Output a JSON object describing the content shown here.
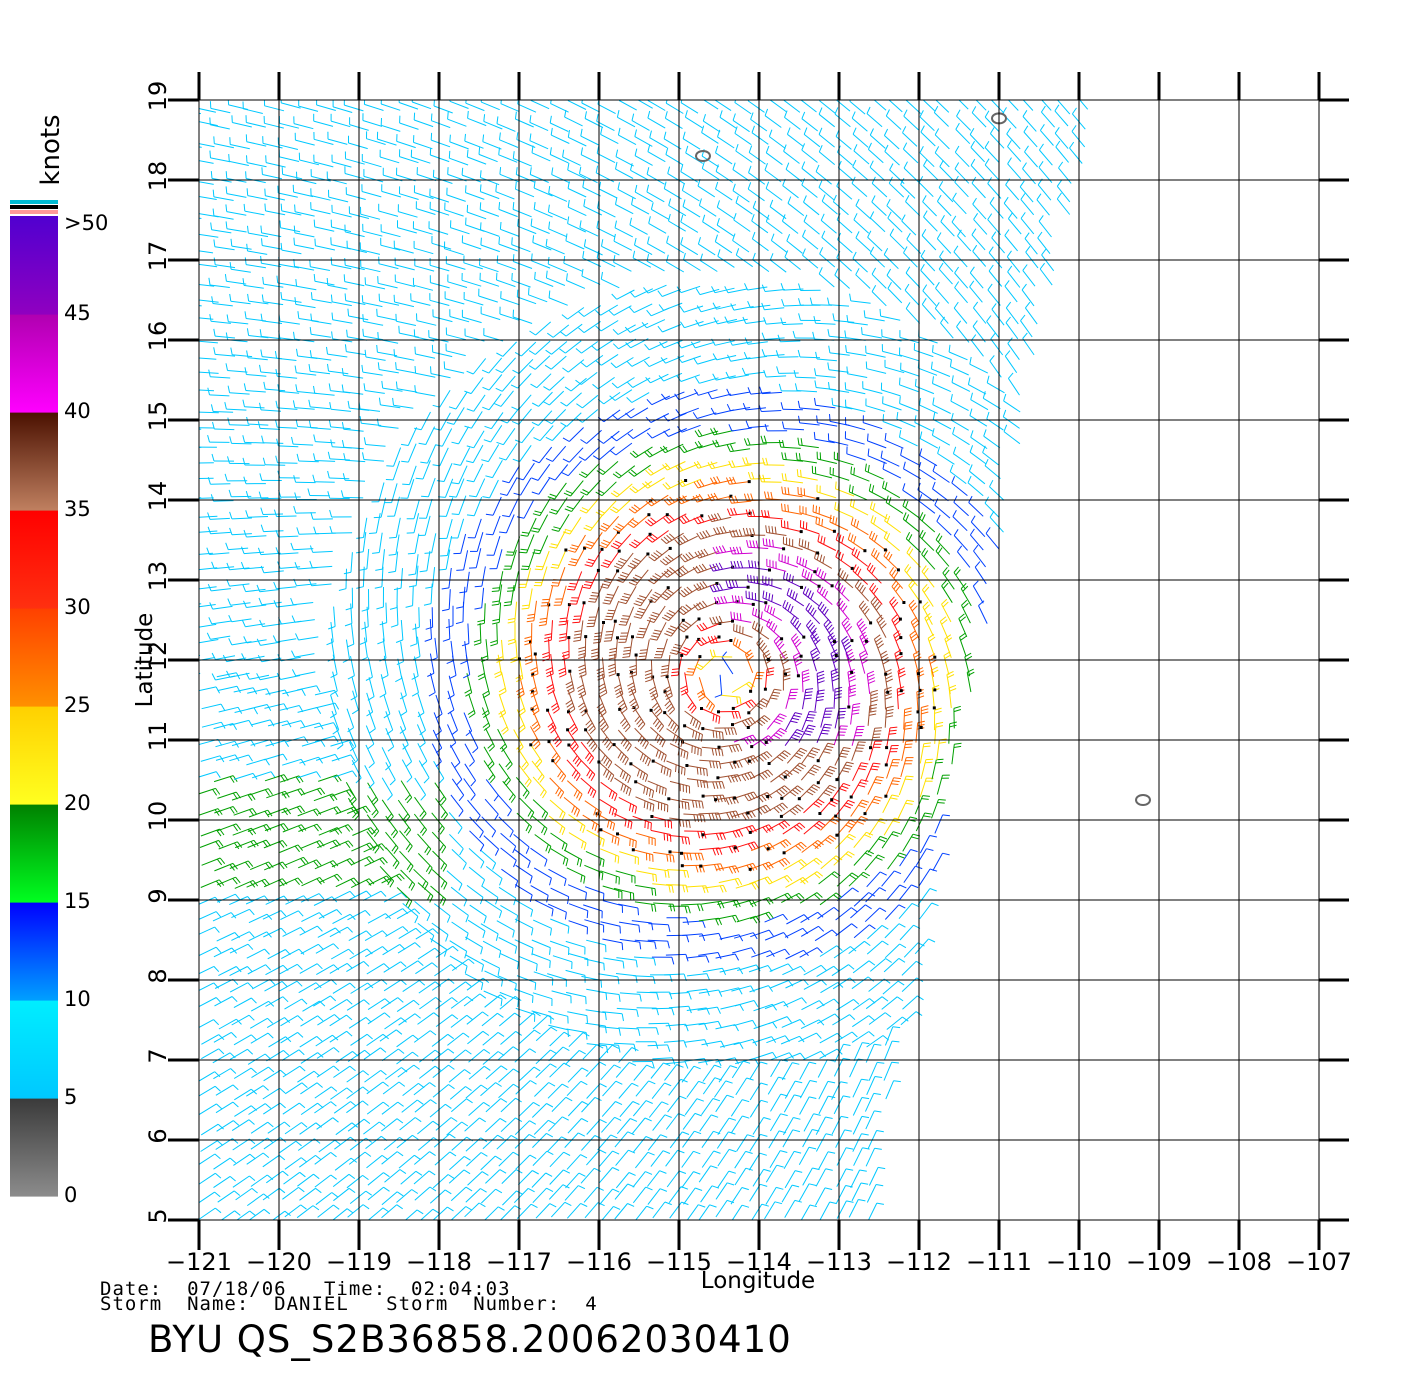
{
  "map": {
    "lon_range": [
      -121,
      -107
    ],
    "lat_range": [
      5,
      19
    ],
    "lon_ticks": [
      -121,
      -120,
      -119,
      -118,
      -117,
      -116,
      -115,
      -114,
      -113,
      -112,
      -111,
      -110,
      -109,
      -108,
      -107
    ],
    "lat_ticks": [
      5,
      6,
      7,
      8,
      9,
      10,
      11,
      12,
      13,
      14,
      15,
      16,
      17,
      18,
      19
    ],
    "lon_tick_labels": [
      "−121",
      "−120",
      "−119",
      "−118",
      "−117",
      "−116",
      "−115",
      "−114",
      "−113",
      "−112",
      "−111",
      "−110",
      "−109",
      "−108",
      "−107"
    ],
    "lat_tick_labels": [
      "5",
      "6",
      "7",
      "8",
      "9",
      "10",
      "11",
      "12",
      "13",
      "14",
      "15",
      "16",
      "17",
      "18",
      "19"
    ],
    "xlabel": "Longitude",
    "ylabel": "Latitude",
    "grid": true,
    "storm_center": {
      "lon": -114.4,
      "lat": 11.8
    },
    "swath_east_edge": [
      [
        -109.8,
        19
      ],
      [
        -110.2,
        17
      ],
      [
        -110.6,
        15.5
      ],
      [
        -111.0,
        13
      ],
      [
        -111.5,
        11
      ],
      [
        -111.9,
        9
      ],
      [
        -112.3,
        7
      ],
      [
        -112.5,
        6
      ],
      [
        -112.6,
        5
      ]
    ],
    "land_contours": [
      {
        "lon": -114.7,
        "lat": 18.3
      },
      {
        "lon": -111.0,
        "lat": 18.77
      },
      {
        "lon": -109.2,
        "lat": 10.25
      }
    ]
  },
  "colorbar": {
    "unit_label": "knots",
    "labels": [
      ">50",
      "45",
      "40",
      "35",
      "30",
      "25",
      "20",
      "15",
      "10",
      "5",
      "0"
    ],
    "segments": [
      {
        "from": 0,
        "to": 5,
        "top": "#3a3a3a",
        "bottom": "#8c8c8c"
      },
      {
        "from": 5,
        "to": 10,
        "top": "#00eeff",
        "bottom": "#00c8ff"
      },
      {
        "from": 10,
        "to": 15,
        "top": "#0000ff",
        "bottom": "#00a0ff"
      },
      {
        "from": 15,
        "to": 20,
        "top": "#008000",
        "bottom": "#00ff20"
      },
      {
        "from": 20,
        "to": 25,
        "top": "#ffd000",
        "bottom": "#ffff20"
      },
      {
        "from": 25,
        "to": 30,
        "top": "#ff4000",
        "bottom": "#ff9000"
      },
      {
        "from": 30,
        "to": 35,
        "top": "#ff0000",
        "bottom": "#ff3010"
      },
      {
        "from": 35,
        "to": 40,
        "top": "#4a1000",
        "bottom": "#c08060"
      },
      {
        "from": 40,
        "to": 45,
        "top": "#b000b0",
        "bottom": "#ff00ff"
      },
      {
        "from": 45,
        "to": 50,
        "top": "#5000d0",
        "bottom": "#9000c0"
      }
    ],
    "extra_stripes": [
      "#00bcd4",
      "#000000",
      "#ff9999"
    ],
    "speed_colors": [
      "#3a3a3a",
      "#00c8ff",
      "#0040ff",
      "#00a000",
      "#ffe000",
      "#ff6600",
      "#ff1010",
      "#a05030",
      "#d000d0",
      "#6000c0"
    ]
  },
  "footer": {
    "date_label": "Date:",
    "date": "07/18/06",
    "time_label": "Time:",
    "time": "02:04:03",
    "storm_name_label": "Storm  Name:",
    "storm_name": "DANIEL",
    "storm_number_label": "Storm  Number:",
    "storm_number": "4",
    "title": "BYU  QS_S2B36858.20062030410"
  }
}
